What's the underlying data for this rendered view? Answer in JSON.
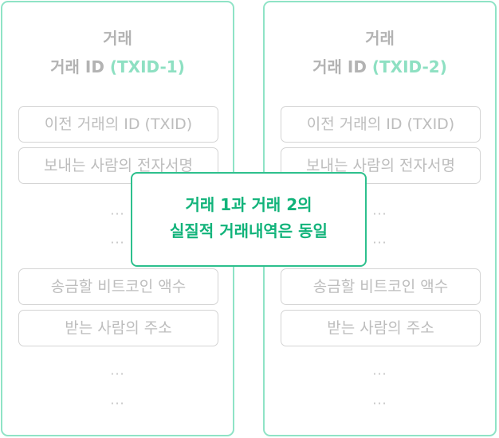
{
  "transactions": [
    {
      "title": "거래",
      "id_prefix": "거래 ID ",
      "txid": "(TXID-1)",
      "fields": [
        "이전 거래의 ID (TXID)",
        "보내는 사람의 전자서명",
        "송금할 비트코인 액수",
        "받는 사람의 주소"
      ],
      "ellipsis": "···"
    },
    {
      "title": "거래",
      "id_prefix": "거래 ID ",
      "txid": "(TXID-2)",
      "fields": [
        "이전 거래의 ID (TXID)",
        "보내는 사람의 전자서명",
        "송금할 비트코인 액수",
        "받는 사람의 주소"
      ],
      "ellipsis": "···"
    }
  ],
  "callout": {
    "line1": "거래  1과 거래 2의",
    "line2": "실질적 거래내역은 동일"
  },
  "colors": {
    "card_border": "#8fe3c6",
    "txid_text": "#8ee0c2",
    "callout_border": "#2dc08d",
    "callout_text": "#11b37a"
  }
}
